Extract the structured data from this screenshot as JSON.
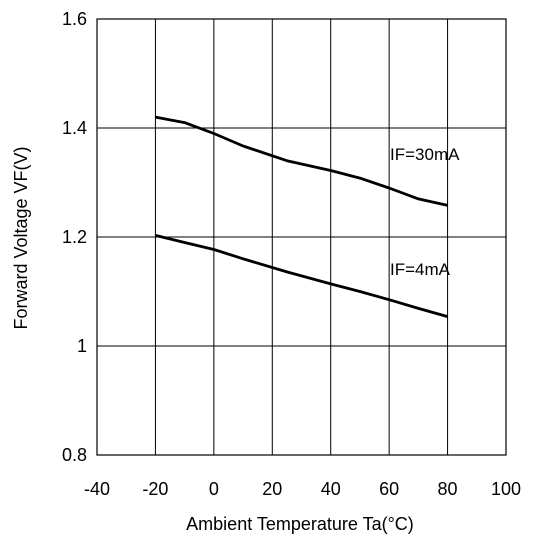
{
  "chart_data": {
    "type": "line",
    "title": "",
    "xlabel": "Ambient Temperature Ta(°C)",
    "ylabel": "Forward Voltage VF(V)",
    "xlim": [
      -40,
      100
    ],
    "ylim": [
      0.8,
      1.6
    ],
    "x_ticks": [
      "-40",
      "-20",
      "0",
      "20",
      "40",
      "60",
      "80",
      "100"
    ],
    "y_ticks": [
      "0.8",
      "1",
      "1.2",
      "1.4",
      "1.6"
    ],
    "grid": true,
    "legend": "none",
    "series": [
      {
        "name": "IF=30mA",
        "x": [
          -20,
          -10,
          0,
          10,
          25,
          40,
          50,
          60,
          70,
          80
        ],
        "y": [
          1.42,
          1.41,
          1.39,
          1.367,
          1.34,
          1.322,
          1.308,
          1.29,
          1.27,
          1.258
        ]
      },
      {
        "name": "IF=4mA",
        "x": [
          -20,
          -10,
          0,
          10,
          25,
          40,
          50,
          60,
          70,
          80
        ],
        "y": [
          1.203,
          1.19,
          1.177,
          1.16,
          1.136,
          1.114,
          1.1,
          1.085,
          1.069,
          1.054
        ]
      }
    ],
    "line_color": "#000000",
    "grid_color": "#000000"
  }
}
